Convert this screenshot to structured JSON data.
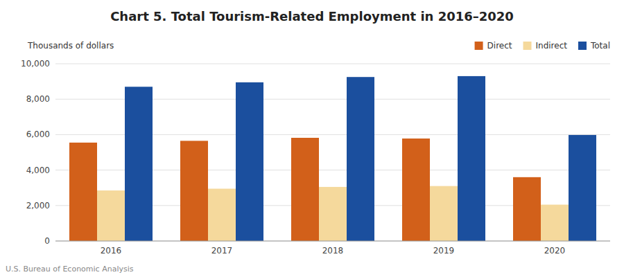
{
  "chart_data": {
    "type": "bar",
    "title": "Chart 5. Total Tourism-Related Employment in 2016–2020",
    "y_label": "Thousands of dollars",
    "source": "U.S. Bureau of Economic Analysis",
    "categories": [
      "2016",
      "2017",
      "2018",
      "2019",
      "2020"
    ],
    "series": [
      {
        "name": "Direct",
        "color": "#D2601A",
        "values": [
          5550,
          5650,
          5820,
          5780,
          3600
        ]
      },
      {
        "name": "Indirect",
        "color": "#F5D99C",
        "values": [
          2850,
          2950,
          3050,
          3100,
          2050
        ]
      },
      {
        "name": "Total",
        "color": "#1B4F9E",
        "values": [
          8700,
          8950,
          9250,
          9300,
          5980
        ]
      }
    ],
    "ylim": [
      0,
      10000
    ],
    "yticks": [
      0,
      {
        "value": 2000,
        "label": "2,000"
      },
      {
        "value": 4000,
        "label": "4,000"
      },
      {
        "value": 6000,
        "label": "6,000"
      },
      {
        "value": 8000,
        "label": "8,000"
      },
      {
        "value": 10000,
        "label": "10,000"
      }
    ],
    "grid": true,
    "legend": "upper right"
  }
}
